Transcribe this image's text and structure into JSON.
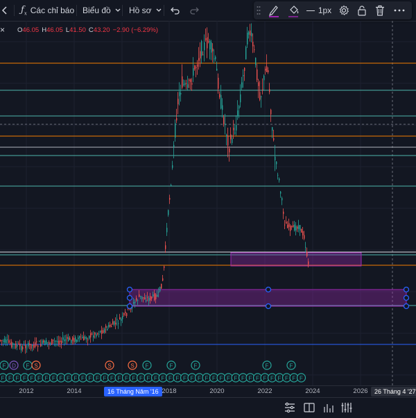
{
  "toolbar": {
    "indicators_label": "Các chỉ báo",
    "charts_label": "Biểu đồ",
    "profile_label": "Hồ sơ"
  },
  "drawing_toolbar": {
    "line_width_label": "1px"
  },
  "ohlc": {
    "open_label": "O",
    "open": "46.05",
    "high_label": "H",
    "high": "46.05",
    "low_label": "L",
    "low": "41.50",
    "close_label": "C",
    "close": "43.20",
    "change": "−2.90 (−6.29%)"
  },
  "axis": {
    "ticks": [
      "2012",
      "2014",
      "2018",
      "2020",
      "2022",
      "2024",
      "2026"
    ],
    "selected_date": "16 Tháng Năm '16",
    "cursor_date": "26 Tháng 4 '27"
  },
  "colors": {
    "background": "#131722",
    "up": "#26a69a",
    "down": "#ef5350",
    "orange_line": "#f57c00",
    "teal_line": "#4db6ac",
    "zone": "#9c27b0"
  }
}
